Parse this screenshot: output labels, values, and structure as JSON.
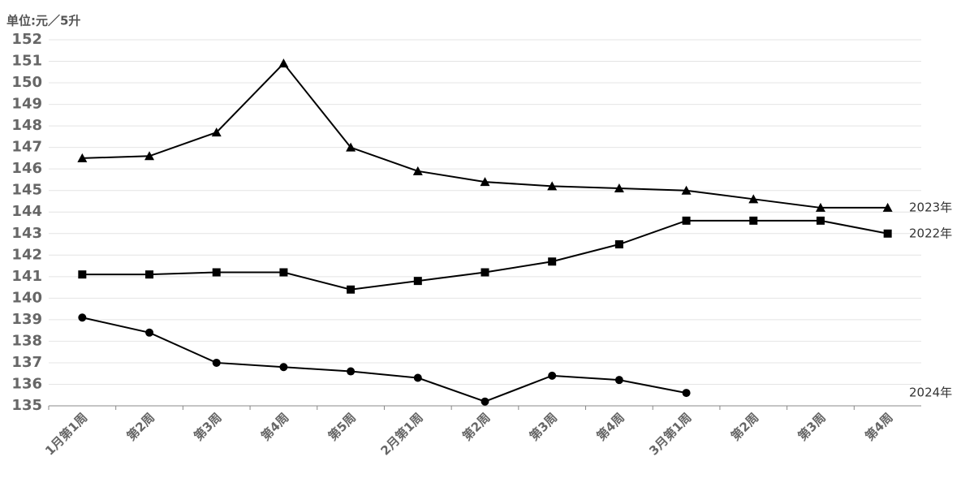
{
  "chart_data": {
    "type": "line",
    "y_label": "单位:元／5升",
    "categories": [
      "1月第1周",
      "第2周",
      "第3周",
      "第4周",
      "第5周",
      "2月第1周",
      "第2周",
      "第3周",
      "第4周",
      "3月第1周",
      "第2周",
      "第3周",
      "第4周"
    ],
    "series": [
      {
        "name": "2023年",
        "color": "#000000",
        "marker": "triangle",
        "values": [
          146.5,
          146.6,
          147.7,
          150.9,
          147.0,
          145.9,
          145.4,
          145.2,
          145.1,
          145.0,
          144.6,
          144.2,
          144.2
        ]
      },
      {
        "name": "2022年",
        "color": "#000000",
        "marker": "square",
        "values": [
          141.1,
          141.1,
          141.2,
          141.2,
          140.4,
          140.8,
          141.2,
          141.7,
          142.5,
          143.6,
          143.6,
          143.6,
          143.0
        ]
      },
      {
        "name": "2024年",
        "color": "#000000",
        "marker": "circle",
        "values": [
          139.1,
          138.4,
          137.0,
          136.8,
          136.6,
          136.3,
          135.2,
          136.4,
          136.2,
          135.6,
          null,
          null,
          null
        ]
      }
    ],
    "ylim": [
      135,
      152
    ],
    "yticks": [
      135,
      136,
      137,
      138,
      139,
      140,
      141,
      142,
      143,
      144,
      145,
      146,
      147,
      148,
      149,
      150,
      151,
      152
    ],
    "grid": true
  }
}
